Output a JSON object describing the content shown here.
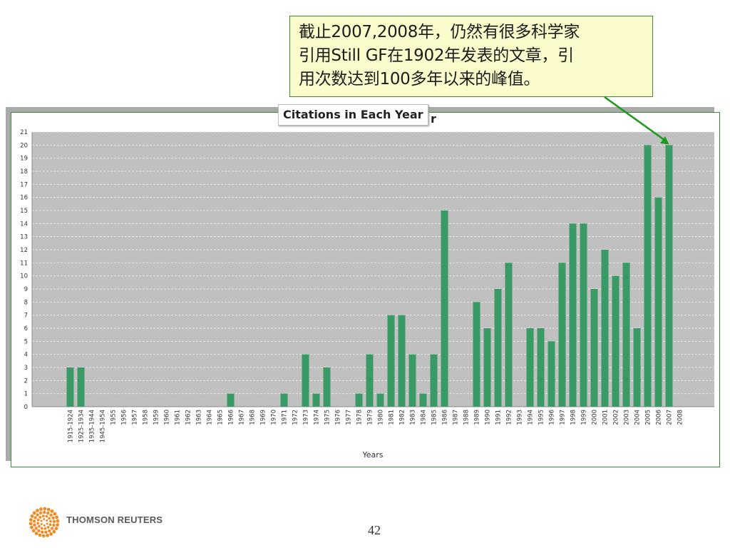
{
  "callout": {
    "lines": [
      "截止2007,2008年，仍然有很多科学家",
      "引用Still GF在1902年发表的文章，引",
      "用次数达到100多年以来的峰值。"
    ]
  },
  "chart_data": {
    "type": "bar",
    "title": "Citations in Each Year",
    "title_tail": "r",
    "xlabel": "Years",
    "ylabel": "",
    "ylim": [
      0,
      21
    ],
    "yticks": [
      0,
      1,
      2,
      3,
      4,
      5,
      6,
      7,
      8,
      9,
      10,
      11,
      12,
      13,
      14,
      15,
      16,
      17,
      18,
      19,
      20,
      21
    ],
    "grid": true,
    "bar_color": "#3a9a65",
    "plot_background": "#c0c0c0",
    "categories": [
      "1915-1924",
      "1925-1934",
      "1935-1944",
      "1945-1954",
      "1955",
      "1956",
      "1957",
      "1958",
      "1959",
      "1960",
      "1961",
      "1962",
      "1963",
      "1964",
      "1965",
      "1966",
      "1967",
      "1968",
      "1969",
      "1970",
      "1971",
      "1972",
      "1973",
      "1974",
      "1975",
      "1976",
      "1977",
      "1978",
      "1979",
      "1980",
      "1981",
      "1982",
      "1983",
      "1984",
      "1985",
      "1986",
      "1987",
      "1988",
      "1989",
      "1990",
      "1991",
      "1992",
      "1993",
      "1994",
      "1995",
      "1996",
      "1997",
      "1998",
      "1999",
      "2000",
      "2001",
      "2002",
      "2003",
      "2004",
      "2005",
      "2006",
      "2007",
      "2008"
    ],
    "values": [
      3,
      3,
      0,
      0,
      0,
      0,
      0,
      0,
      0,
      0,
      0,
      0,
      0,
      0,
      0,
      1,
      0,
      0,
      0,
      0,
      1,
      0,
      4,
      1,
      3,
      0,
      0,
      1,
      4,
      1,
      7,
      7,
      4,
      1,
      4,
      15,
      0,
      0,
      8,
      6,
      9,
      11,
      0,
      6,
      6,
      5,
      11,
      14,
      14,
      9,
      12,
      10,
      11,
      6,
      20,
      16,
      20,
      0
    ]
  },
  "colors": {
    "callout_fill": "#fbfbcb",
    "callout_border": "#3a8a3a",
    "arrow": "#1a9a1a"
  },
  "footer": {
    "brand": "THOMSON REUTERS",
    "page_number": "42"
  },
  "icons": {
    "logo": "thomson-reuters-dot-sphere-icon"
  }
}
